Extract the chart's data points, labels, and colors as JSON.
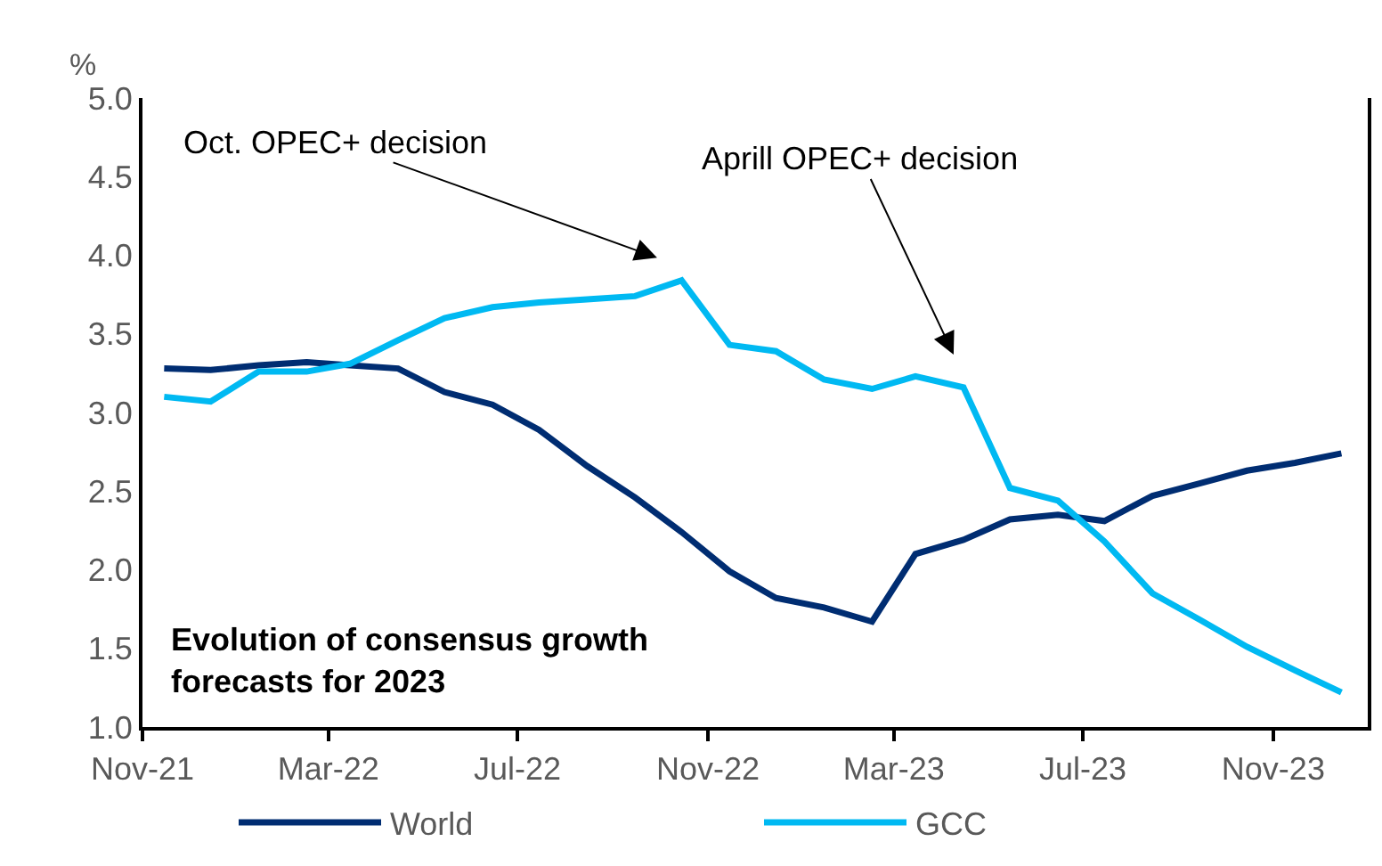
{
  "chart_data": {
    "type": "line",
    "ylabel": "%",
    "x": [
      "2021-11-15",
      "2021-12-15",
      "2022-01-15",
      "2022-02-15",
      "2022-03-15",
      "2022-04-15",
      "2022-05-15",
      "2022-06-15",
      "2022-07-15",
      "2022-08-15",
      "2022-09-15",
      "2022-10-15",
      "2022-11-15",
      "2022-12-15",
      "2023-01-15",
      "2023-02-15",
      "2023-03-15",
      "2023-04-15",
      "2023-05-15",
      "2023-06-15",
      "2023-07-15",
      "2023-08-15",
      "2023-09-15",
      "2023-10-15",
      "2023-11-15",
      "2023-12-15"
    ],
    "series": [
      {
        "name": "World",
        "color": "#002d72",
        "values": [
          3.28,
          3.27,
          3.3,
          3.32,
          3.3,
          3.28,
          3.13,
          3.05,
          2.89,
          2.66,
          2.46,
          2.24,
          1.99,
          1.82,
          1.76,
          1.67,
          2.1,
          2.19,
          2.32,
          2.35,
          2.31,
          2.47,
          2.55,
          2.63,
          2.68,
          2.74
        ]
      },
      {
        "name": "GCC",
        "color": "#00b9f2",
        "values": [
          3.1,
          3.07,
          3.26,
          3.26,
          3.31,
          3.46,
          3.6,
          3.67,
          3.7,
          3.72,
          3.74,
          3.84,
          3.43,
          3.39,
          3.21,
          3.15,
          3.23,
          3.16,
          2.52,
          2.44,
          2.18,
          1.85,
          1.68,
          1.51,
          1.36,
          1.22
        ]
      }
    ],
    "xlim": [
      "2021-11-01",
      "2024-01-01"
    ],
    "xticks": [
      {
        "value": "2021-11-01",
        "label": "Nov-21"
      },
      {
        "value": "2022-03-01",
        "label": "Mar-22"
      },
      {
        "value": "2022-07-01",
        "label": "Jul-22"
      },
      {
        "value": "2022-11-01",
        "label": "Nov-22"
      },
      {
        "value": "2023-03-01",
        "label": "Mar-23"
      },
      {
        "value": "2023-07-01",
        "label": "Jul-23"
      },
      {
        "value": "2023-11-01",
        "label": "Nov-23"
      }
    ],
    "ylim": [
      1.0,
      5.0
    ],
    "yticks": [
      {
        "value": 1,
        "label": "1.0"
      },
      {
        "value": 1.5,
        "label": "1.5"
      },
      {
        "value": 2,
        "label": "2.0"
      },
      {
        "value": 2.5,
        "label": "2.5"
      },
      {
        "value": 3,
        "label": "3.0"
      },
      {
        "value": 3.5,
        "label": "3.5"
      },
      {
        "value": 4,
        "label": "4.0"
      },
      {
        "value": 4.5,
        "label": "4.5"
      },
      {
        "value": 5,
        "label": "5.0"
      }
    ],
    "annotations": [
      "Oct. OPEC+ decision",
      "Aprill OPEC+ decision",
      "Evolution of consensus growth\nforecasts for 2023"
    ],
    "legend": "bottom",
    "marker": "none",
    "line_style": "solid"
  }
}
